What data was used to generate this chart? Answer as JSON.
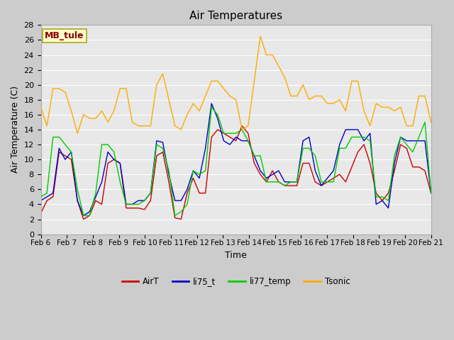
{
  "title": "Air Temperatures",
  "xlabel": "Time",
  "ylabel": "Air Temperature (C)",
  "annotation": "MB_tule",
  "ylim": [
    0,
    28
  ],
  "xtick_labels": [
    "Feb 6",
    "Feb 7",
    "Feb 8",
    "Feb 9",
    "Feb 10",
    "Feb 11",
    "Feb 12",
    "Feb 13",
    "Feb 14",
    "Feb 15",
    "Feb 16",
    "Feb 17",
    "Feb 18",
    "Feb 19",
    "Feb 20",
    "Feb 21"
  ],
  "series_colors": {
    "AirT": "#cc0000",
    "li75_t": "#0000cc",
    "li77_temp": "#00cc00",
    "Tsonic": "#ffaa00"
  },
  "fig_bg": "#cccccc",
  "plot_bg": "#e8e8e8",
  "grid_color": "#ffffff",
  "AirT": [
    2.8,
    4.5,
    5.0,
    11.0,
    10.5,
    10.0,
    4.5,
    2.0,
    2.5,
    4.5,
    4.0,
    9.5,
    10.0,
    9.5,
    3.5,
    3.5,
    3.5,
    3.3,
    4.5,
    10.5,
    11.0,
    7.0,
    2.2,
    2.0,
    5.5,
    7.5,
    5.5,
    5.5,
    13.0,
    14.0,
    13.5,
    13.0,
    12.5,
    14.5,
    13.5,
    9.5,
    8.0,
    7.0,
    8.5,
    7.0,
    6.5,
    6.5,
    6.5,
    9.5,
    9.5,
    7.0,
    6.5,
    7.0,
    7.5,
    8.0,
    7.0,
    9.0,
    11.0,
    12.0,
    9.5,
    5.5,
    4.5,
    5.5,
    8.5,
    12.0,
    11.5,
    9.0,
    9.0,
    8.5,
    5.5
  ],
  "li75_t": [
    4.5,
    5.0,
    5.5,
    11.5,
    10.0,
    11.0,
    4.5,
    2.5,
    3.0,
    5.0,
    7.0,
    11.0,
    10.0,
    9.5,
    4.0,
    4.0,
    4.5,
    4.5,
    5.5,
    12.5,
    12.3,
    8.0,
    4.5,
    4.5,
    6.0,
    8.5,
    7.5,
    11.5,
    17.5,
    15.5,
    12.5,
    12.0,
    13.0,
    12.5,
    12.5,
    10.5,
    8.5,
    7.5,
    8.0,
    8.5,
    7.0,
    7.0,
    7.0,
    12.5,
    13.0,
    8.5,
    6.5,
    7.5,
    8.5,
    12.0,
    14.0,
    14.0,
    14.0,
    12.5,
    13.5,
    4.0,
    4.5,
    3.5,
    9.5,
    13.0,
    12.5,
    12.5,
    12.5,
    12.5,
    5.5
  ],
  "li77_temp": [
    5.0,
    5.5,
    13.0,
    13.0,
    12.0,
    11.0,
    6.0,
    2.5,
    2.5,
    5.5,
    12.0,
    12.0,
    11.0,
    7.0,
    4.0,
    4.0,
    4.0,
    4.5,
    5.5,
    12.0,
    11.5,
    8.5,
    2.5,
    3.0,
    4.0,
    8.5,
    8.0,
    8.5,
    17.0,
    16.0,
    13.5,
    13.5,
    13.5,
    14.0,
    12.5,
    10.5,
    10.5,
    7.0,
    7.0,
    7.0,
    6.5,
    7.0,
    7.0,
    11.5,
    11.5,
    10.5,
    7.0,
    7.0,
    7.0,
    11.5,
    11.5,
    13.0,
    13.0,
    13.0,
    12.5,
    5.0,
    5.0,
    4.5,
    10.5,
    13.0,
    12.0,
    11.0,
    13.0,
    15.0,
    5.5
  ],
  "Tsonic": [
    17.0,
    14.5,
    19.5,
    19.5,
    19.0,
    16.5,
    13.5,
    16.0,
    15.5,
    15.5,
    16.5,
    15.0,
    16.5,
    19.5,
    19.5,
    15.0,
    14.5,
    14.5,
    14.5,
    20.0,
    21.5,
    18.0,
    14.5,
    14.0,
    16.0,
    17.5,
    16.5,
    18.5,
    20.5,
    20.5,
    19.5,
    18.5,
    18.0,
    14.0,
    14.5,
    20.5,
    26.5,
    24.0,
    24.0,
    22.5,
    21.0,
    18.5,
    18.5,
    20.0,
    18.0,
    18.5,
    18.5,
    17.5,
    17.5,
    18.0,
    16.5,
    20.5,
    20.5,
    16.5,
    14.5,
    17.5,
    17.0,
    17.0,
    16.5,
    17.0,
    14.5,
    14.5,
    18.5,
    18.5,
    15.0
  ]
}
